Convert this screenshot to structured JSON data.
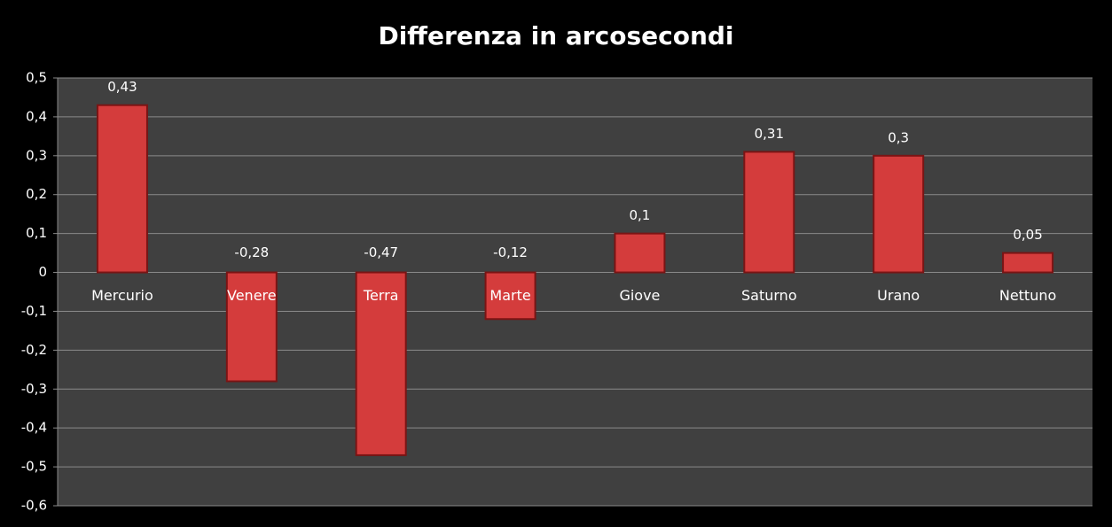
{
  "chart_data": {
    "type": "bar",
    "title": "Differenza in arcosecondi",
    "categories": [
      "Mercurio",
      "Venere",
      "Terra",
      "Marte",
      "Giove",
      "Saturno",
      "Urano",
      "Nettuno"
    ],
    "values": [
      0.43,
      -0.28,
      -0.47,
      -0.12,
      0.1,
      0.31,
      0.3,
      0.05
    ],
    "value_labels": [
      "0,43",
      "-0,28",
      "-0,47",
      "-0,12",
      "0,1",
      "0,31",
      "0,3",
      "0,05"
    ],
    "color": "#d43c3c",
    "ylim": [
      -0.6,
      0.5
    ],
    "yticks": [
      {
        "value": -0.6,
        "label": "-0,6"
      },
      {
        "value": -0.5,
        "label": "-0,5"
      },
      {
        "value": -0.4,
        "label": "-0,4"
      },
      {
        "value": -0.3,
        "label": "-0,3"
      },
      {
        "value": -0.2,
        "label": "-0,2"
      },
      {
        "value": -0.1,
        "label": "-0,1"
      },
      0,
      {
        "value": 0.1,
        "label": "0,1"
      },
      {
        "value": 0.2,
        "label": "0,2"
      },
      {
        "value": 0.3,
        "label": "0,3"
      },
      {
        "value": 0.4,
        "label": "0,4"
      },
      {
        "value": 0.5,
        "label": "0,5"
      }
    ],
    "grid": true
  }
}
